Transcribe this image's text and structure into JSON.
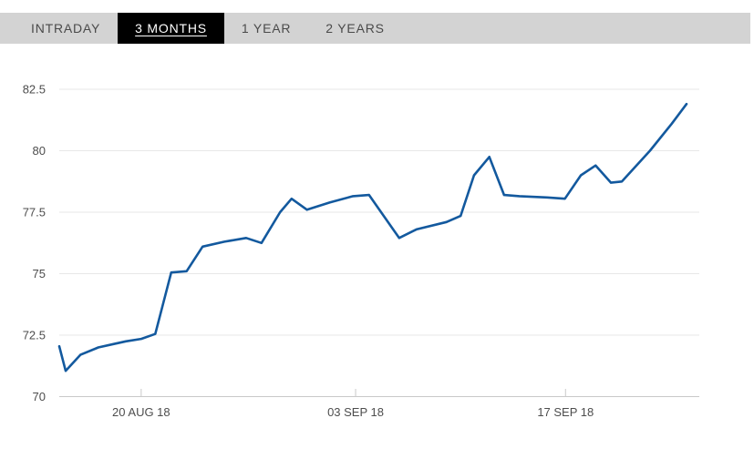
{
  "tabs": {
    "items": [
      {
        "label": "INTRADAY",
        "active": false
      },
      {
        "label": "3 MONTHS",
        "active": true
      },
      {
        "label": "1 YEAR",
        "active": false
      },
      {
        "label": "2 YEARS",
        "active": false
      }
    ]
  },
  "colors": {
    "tab_bar_bg": "#d3d3d3",
    "tab_text": "#4a4a4a",
    "active_tab_bg": "#000000",
    "active_tab_text": "#ffffff",
    "gridline": "#e7e7e7",
    "axis_line": "#c9c9c9",
    "axis_label": "#4d4d4d",
    "line": "#13599e"
  },
  "chart_data": {
    "type": "line",
    "title": "",
    "xlabel": "",
    "ylabel": "",
    "ylim": [
      70,
      82.5
    ],
    "y_ticks": [
      70,
      72.5,
      75,
      77.5,
      80,
      82.5
    ],
    "grid": "horizontal",
    "legend": "none",
    "x_ticks": [
      {
        "label": "20 AUG 18",
        "x": 0.128
      },
      {
        "label": "03 SEP 18",
        "x": 0.463
      },
      {
        "label": "17 SEP 18",
        "x": 0.791
      }
    ],
    "series": [
      {
        "name": "price",
        "points": [
          {
            "x": 0.0,
            "v": 72.05
          },
          {
            "x": 0.01,
            "v": 71.05
          },
          {
            "x": 0.033,
            "v": 71.7
          },
          {
            "x": 0.061,
            "v": 72.0
          },
          {
            "x": 0.104,
            "v": 72.25
          },
          {
            "x": 0.128,
            "v": 72.35
          },
          {
            "x": 0.15,
            "v": 72.55
          },
          {
            "x": 0.175,
            "v": 75.05
          },
          {
            "x": 0.199,
            "v": 75.1
          },
          {
            "x": 0.224,
            "v": 76.1
          },
          {
            "x": 0.258,
            "v": 76.3
          },
          {
            "x": 0.292,
            "v": 76.45
          },
          {
            "x": 0.316,
            "v": 76.25
          },
          {
            "x": 0.345,
            "v": 77.5
          },
          {
            "x": 0.363,
            "v": 78.05
          },
          {
            "x": 0.387,
            "v": 77.6
          },
          {
            "x": 0.423,
            "v": 77.9
          },
          {
            "x": 0.459,
            "v": 78.15
          },
          {
            "x": 0.484,
            "v": 78.2
          },
          {
            "x": 0.531,
            "v": 76.45
          },
          {
            "x": 0.558,
            "v": 76.8
          },
          {
            "x": 0.605,
            "v": 77.1
          },
          {
            "x": 0.627,
            "v": 77.35
          },
          {
            "x": 0.648,
            "v": 79.0
          },
          {
            "x": 0.672,
            "v": 79.75
          },
          {
            "x": 0.695,
            "v": 78.2
          },
          {
            "x": 0.719,
            "v": 78.15
          },
          {
            "x": 0.762,
            "v": 78.1
          },
          {
            "x": 0.79,
            "v": 78.05
          },
          {
            "x": 0.815,
            "v": 79.0
          },
          {
            "x": 0.838,
            "v": 79.4
          },
          {
            "x": 0.862,
            "v": 78.7
          },
          {
            "x": 0.879,
            "v": 78.75
          },
          {
            "x": 0.923,
            "v": 80.0
          },
          {
            "x": 0.957,
            "v": 81.1
          },
          {
            "x": 0.98,
            "v": 81.9
          }
        ]
      }
    ]
  }
}
